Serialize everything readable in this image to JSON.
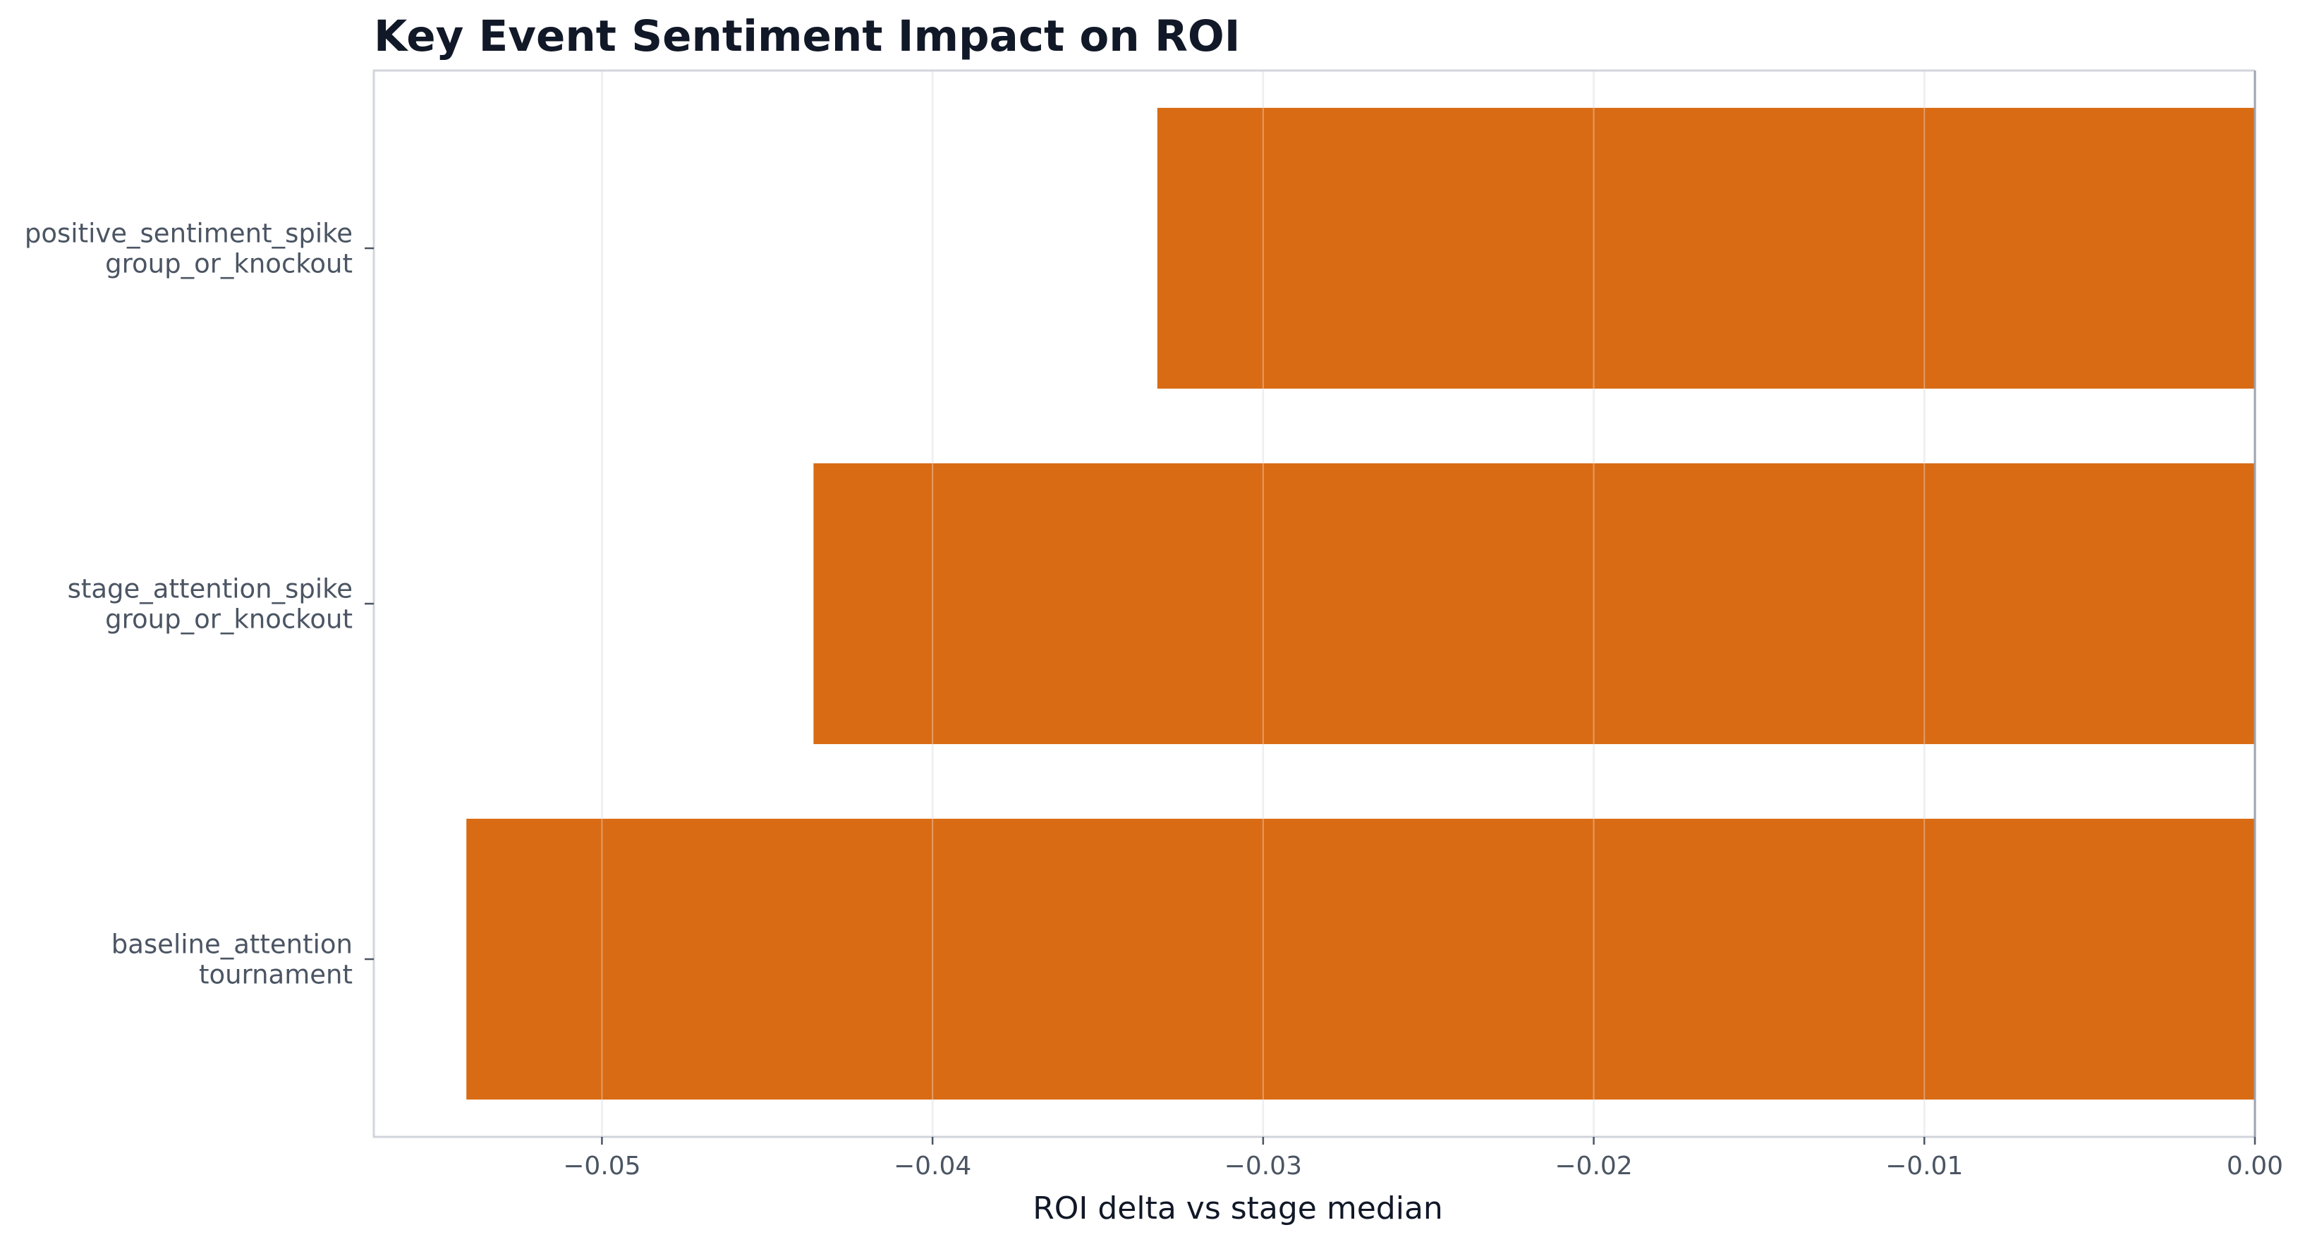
{
  "chart_data": {
    "type": "bar",
    "orientation": "horizontal",
    "title": "Key Event Sentiment Impact on ROI",
    "xlabel": "ROI delta vs stage median",
    "ylabel": "",
    "categories": [
      "positive_sentiment_spike\ngroup_or_knockout",
      "stage_attention_spike\ngroup_or_knockout",
      "baseline_attention\ntournament"
    ],
    "values": [
      -0.0332,
      -0.0436,
      -0.0541
    ],
    "xlim": [
      -0.0569,
      0.0
    ],
    "xticks": [
      -0.05,
      -0.04,
      -0.03,
      -0.02,
      -0.01,
      0.0
    ],
    "xtick_labels": [
      "−0.05",
      "−0.04",
      "−0.03",
      "−0.02",
      "−0.01",
      "0.00"
    ],
    "grid": {
      "x": true,
      "y": false
    },
    "legend": "none",
    "colors": {
      "bar": "#d55e00",
      "grid": "#e5e7eb",
      "frame": "#d1d5db",
      "zero_line": "#9ca3af",
      "title": "#111827",
      "tick_label": "#4b5563",
      "axis_label": "#111827"
    }
  }
}
